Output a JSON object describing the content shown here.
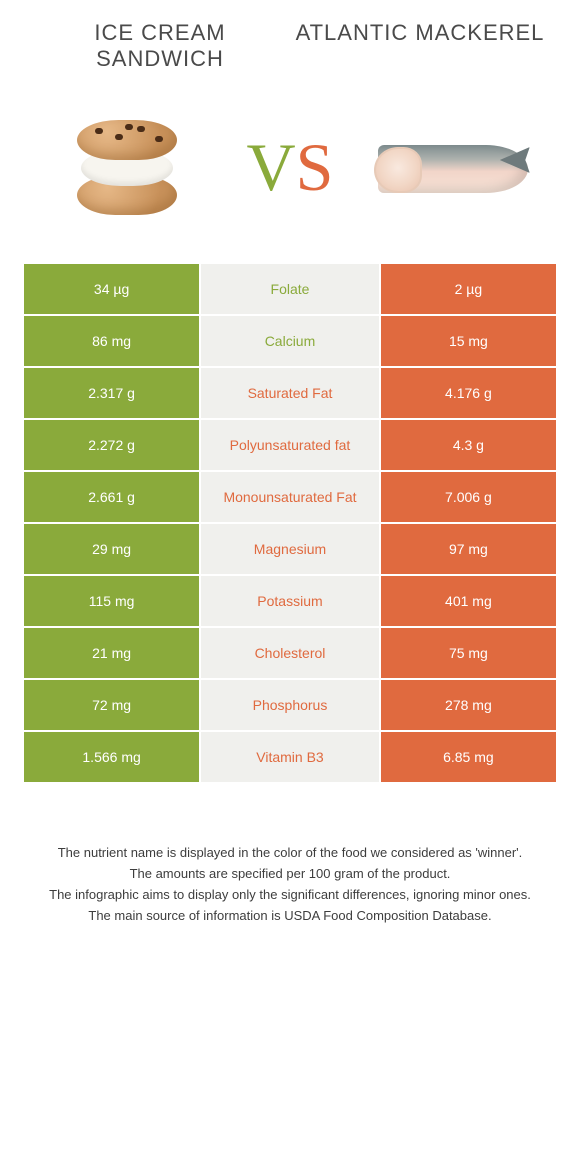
{
  "header": {
    "left_title": "ICE CREAM SANDWICH",
    "right_title": "ATLANTIC MACKEREL"
  },
  "vs": {
    "v": "V",
    "s": "S"
  },
  "colors": {
    "left": "#8aaa3b",
    "right": "#e06a3f",
    "mid_bg": "#f0f0ed",
    "page_bg": "#ffffff"
  },
  "rows": [
    {
      "left": "34 µg",
      "label": "Folate",
      "right": "2 µg",
      "winner": "left"
    },
    {
      "left": "86 mg",
      "label": "Calcium",
      "right": "15 mg",
      "winner": "left"
    },
    {
      "left": "2.317 g",
      "label": "Saturated Fat",
      "right": "4.176 g",
      "winner": "right"
    },
    {
      "left": "2.272 g",
      "label": "Polyunsaturated fat",
      "right": "4.3 g",
      "winner": "right"
    },
    {
      "left": "2.661 g",
      "label": "Monounsaturated Fat",
      "right": "7.006 g",
      "winner": "right"
    },
    {
      "left": "29 mg",
      "label": "Magnesium",
      "right": "97 mg",
      "winner": "right"
    },
    {
      "left": "115 mg",
      "label": "Potassium",
      "right": "401 mg",
      "winner": "right"
    },
    {
      "left": "21 mg",
      "label": "Cholesterol",
      "right": "75 mg",
      "winner": "right"
    },
    {
      "left": "72 mg",
      "label": "Phosphorus",
      "right": "278 mg",
      "winner": "right"
    },
    {
      "left": "1.566 mg",
      "label": "Vitamin B3",
      "right": "6.85 mg",
      "winner": "right"
    }
  ],
  "footer": {
    "line1": "The nutrient name is displayed in the color of the food we considered as 'winner'.",
    "line2": "The amounts are specified per 100 gram of the product.",
    "line3": "The infographic aims to display only the significant differences, ignoring minor ones.",
    "line4": "The main source of information is USDA Food Composition Database."
  }
}
